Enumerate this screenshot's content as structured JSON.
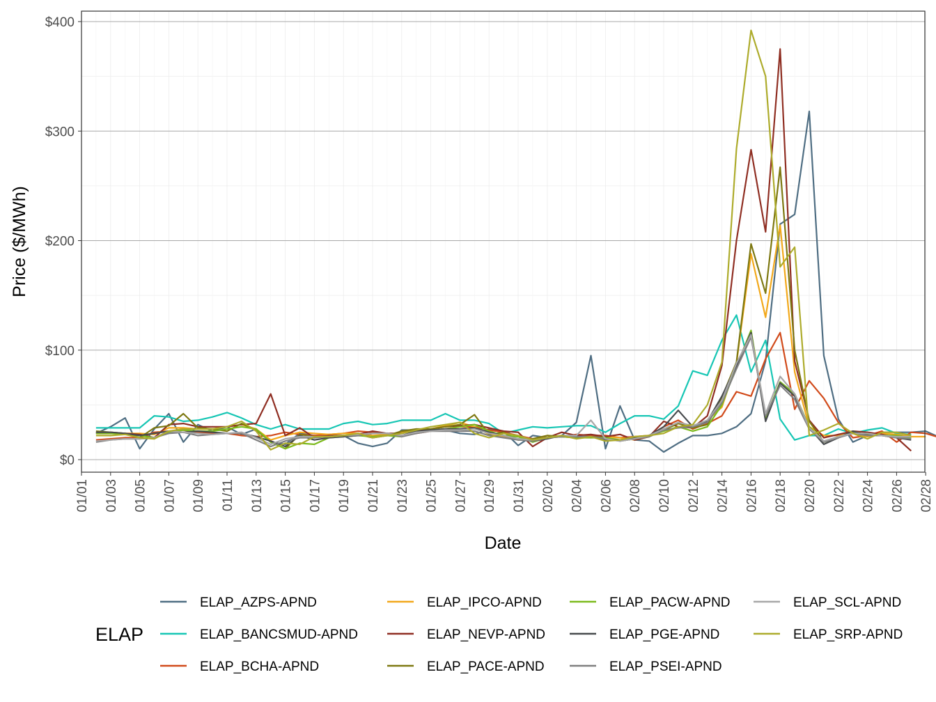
{
  "chart_data": {
    "type": "line",
    "xlabel": "Date",
    "ylabel": "Price ($/MWh)",
    "ylim": [
      -10,
      410
    ],
    "y_ticks": [
      0,
      100,
      200,
      300,
      400
    ],
    "y_tick_labels": [
      "$0",
      "$100",
      "$200",
      "$300",
      "$400"
    ],
    "x_tick_labels": [
      "01/01",
      "01/03",
      "01/05",
      "01/07",
      "01/09",
      "01/11",
      "01/13",
      "01/15",
      "01/17",
      "01/19",
      "01/21",
      "01/23",
      "01/25",
      "01/27",
      "01/29",
      "01/31",
      "02/02",
      "02/04",
      "02/06",
      "02/08",
      "02/10",
      "02/12",
      "02/14",
      "02/16",
      "02/18",
      "02/20",
      "02/22",
      "02/24",
      "02/26",
      "02/28"
    ],
    "x_start": "01/02",
    "x_end": "02/27",
    "grid": true,
    "legend": {
      "title": "ELAP",
      "placement": "bottom",
      "columns": [
        [
          "ELAP_AZPS-APND",
          "ELAP_BANCSMUD-APND",
          "ELAP_BCHA-APND"
        ],
        [
          "ELAP_IPCO-APND",
          "ELAP_NEVP-APND",
          "ELAP_PACE-APND"
        ],
        [
          "ELAP_PACW-APND",
          "ELAP_PGE-APND",
          "ELAP_PSEI-APND"
        ],
        [
          "ELAP_SCL-APND",
          "ELAP_SRP-APND"
        ]
      ]
    },
    "series": [
      {
        "name": "ELAP_AZPS-APND",
        "color": "#4e6d82",
        "values": [
          24,
          30,
          38,
          10,
          28,
          42,
          16,
          32,
          26,
          30,
          23,
          28,
          16,
          14,
          24,
          22,
          22,
          22,
          15,
          12,
          15,
          27,
          27,
          27,
          27,
          24,
          23,
          28,
          26,
          13,
          22,
          20,
          22,
          34,
          95,
          10,
          49,
          18,
          17,
          7,
          15,
          22,
          22,
          24,
          30,
          42,
          90,
          215,
          224,
          318,
          95,
          37,
          16,
          22,
          25,
          25,
          25,
          26,
          20,
          18
        ]
      },
      {
        "name": "ELAP_BANCSMUD-APND",
        "color": "#16c6b4",
        "values": [
          29,
          29,
          29,
          29,
          40,
          39,
          35,
          36,
          39,
          43,
          38,
          32,
          28,
          32,
          28,
          28,
          28,
          33,
          35,
          32,
          33,
          36,
          36,
          36,
          42,
          36,
          36,
          33,
          24,
          27,
          30,
          29,
          30,
          31,
          31,
          25,
          33,
          40,
          40,
          37,
          49,
          81,
          77,
          109,
          132,
          80,
          109,
          37,
          18,
          22,
          22,
          28,
          24,
          27,
          29,
          24,
          23
        ]
      },
      {
        "name": "ELAP_BCHA-APND",
        "color": "#d14a1a",
        "values": [
          18,
          19,
          20,
          20,
          25,
          26,
          27,
          25,
          24,
          24,
          22,
          21,
          22,
          25,
          23,
          22,
          23,
          24,
          26,
          25,
          24,
          22,
          24,
          26,
          28,
          30,
          30,
          27,
          25,
          22,
          19,
          20,
          21,
          23,
          22,
          22,
          20,
          21,
          22,
          30,
          36,
          28,
          33,
          40,
          62,
          58,
          92,
          116,
          46,
          72,
          56,
          34,
          20,
          22,
          26,
          16,
          25,
          24,
          20,
          17,
          19
        ]
      },
      {
        "name": "ELAP_IPCO-APND",
        "color": "#f2a81a",
        "values": [
          25,
          25,
          24,
          24,
          23,
          29,
          29,
          28,
          28,
          30,
          32,
          28,
          18,
          22,
          25,
          24,
          23,
          24,
          24,
          22,
          23,
          25,
          27,
          28,
          31,
          34,
          30,
          23,
          21,
          18,
          19,
          22,
          21,
          21,
          20,
          21,
          20,
          18,
          21,
          28,
          33,
          30,
          36,
          48,
          88,
          188,
          130,
          214,
          80,
          30,
          22,
          22,
          24,
          21,
          24,
          23,
          21,
          21
        ]
      },
      {
        "name": "ELAP_NEVP-APND",
        "color": "#8f2e22",
        "values": [
          24,
          24,
          24,
          23,
          20,
          32,
          33,
          30,
          30,
          30,
          32,
          33,
          60,
          22,
          29,
          20,
          22,
          22,
          23,
          26,
          24,
          24,
          27,
          28,
          30,
          31,
          32,
          29,
          26,
          25,
          12,
          20,
          25,
          22,
          23,
          21,
          23,
          18,
          21,
          35,
          30,
          29,
          40,
          86,
          200,
          283,
          208,
          375,
          90,
          36,
          20,
          23,
          26,
          25,
          23,
          20,
          8
        ]
      },
      {
        "name": "ELAP_PACE-APND",
        "color": "#7d7811",
        "values": [
          26,
          25,
          24,
          20,
          29,
          31,
          42,
          29,
          28,
          26,
          33,
          27,
          16,
          10,
          23,
          21,
          21,
          22,
          23,
          20,
          22,
          26,
          28,
          28,
          30,
          32,
          41,
          23,
          25,
          18,
          19,
          22,
          21,
          20,
          21,
          20,
          17,
          19,
          21,
          27,
          33,
          29,
          32,
          57,
          89,
          197,
          152,
          267,
          100,
          35,
          16,
          20,
          25,
          23,
          22,
          22,
          20
        ]
      },
      {
        "name": "ELAP_PACW-APND",
        "color": "#7cba1c",
        "values": [
          24,
          24,
          23,
          22,
          20,
          25,
          27,
          26,
          26,
          28,
          30,
          28,
          16,
          10,
          15,
          14,
          20,
          21,
          22,
          21,
          22,
          21,
          25,
          27,
          28,
          30,
          32,
          26,
          22,
          21,
          16,
          20,
          21,
          20,
          20,
          20,
          18,
          19,
          22,
          26,
          30,
          26,
          30,
          50,
          85,
          118,
          38,
          71,
          60,
          30,
          16,
          20,
          26,
          22,
          22,
          22,
          20
        ]
      },
      {
        "name": "ELAP_PGE-APND",
        "color": "#474a4d",
        "values": [
          25,
          25,
          24,
          22,
          24,
          26,
          25,
          26,
          25,
          24,
          24,
          21,
          17,
          12,
          22,
          18,
          20,
          21,
          22,
          24,
          24,
          22,
          26,
          27,
          28,
          28,
          29,
          25,
          22,
          19,
          17,
          19,
          22,
          21,
          21,
          18,
          18,
          20,
          22,
          30,
          45,
          30,
          35,
          58,
          86,
          116,
          35,
          70,
          58,
          29,
          14,
          20,
          26,
          22,
          22,
          20,
          18
        ]
      },
      {
        "name": "ELAP_PSEI-APND",
        "color": "#7f7f7f",
        "values": [
          16,
          18,
          19,
          19,
          20,
          24,
          25,
          22,
          23,
          24,
          24,
          18,
          12,
          17,
          20,
          20,
          21,
          22,
          22,
          24,
          24,
          21,
          24,
          26,
          26,
          26,
          26,
          22,
          20,
          18,
          17,
          20,
          21,
          21,
          21,
          19,
          17,
          19,
          21,
          27,
          29,
          30,
          34,
          52,
          83,
          112,
          40,
          68,
          55,
          28,
          16,
          20,
          24,
          22,
          22,
          20,
          19
        ]
      },
      {
        "name": "ELAP_SCL-APND",
        "color": "#a7a7a7",
        "values": [
          17,
          18,
          19,
          19,
          20,
          26,
          25,
          24,
          23,
          24,
          25,
          20,
          14,
          19,
          21,
          21,
          21,
          22,
          23,
          24,
          24,
          22,
          25,
          26,
          27,
          27,
          28,
          24,
          22,
          19,
          18,
          20,
          22,
          22,
          36,
          19,
          17,
          19,
          22,
          28,
          34,
          31,
          36,
          54,
          88,
          114,
          42,
          76,
          60,
          29,
          17,
          21,
          24,
          24,
          22,
          21,
          21
        ]
      },
      {
        "name": "ELAP_SRP-APND",
        "color": "#adab2b",
        "values": [
          22,
          22,
          23,
          20,
          19,
          26,
          28,
          28,
          28,
          30,
          35,
          26,
          9,
          15,
          14,
          21,
          21,
          22,
          24,
          20,
          22,
          24,
          27,
          30,
          32,
          34,
          24,
          20,
          24,
          22,
          18,
          20,
          22,
          19,
          21,
          17,
          18,
          21,
          22,
          24,
          30,
          32,
          50,
          89,
          284,
          392,
          350,
          176,
          194,
          22,
          27,
          33,
          24,
          19,
          25,
          25,
          22
        ]
      }
    ]
  }
}
